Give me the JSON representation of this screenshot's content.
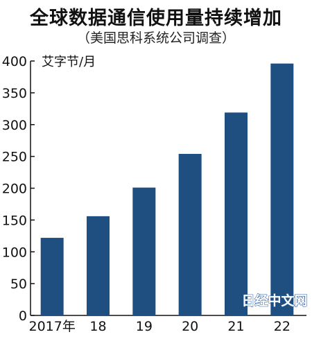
{
  "chart_data": {
    "type": "bar",
    "title": "全球数据通信使用量持续增加",
    "subtitle": "（美国思科系统公司调查）",
    "ylabel": "艾字节/月",
    "xlabel": "",
    "categories": [
      "2017年",
      "18",
      "19",
      "20",
      "21",
      "22"
    ],
    "values": [
      122,
      156,
      201,
      254,
      319,
      396
    ],
    "ylim": [
      0,
      400
    ],
    "yticks": [
      0,
      50,
      100,
      150,
      200,
      250,
      300,
      350,
      400
    ],
    "grid": false,
    "bar_color": "#1e4f80"
  },
  "watermark": "日经中文网"
}
